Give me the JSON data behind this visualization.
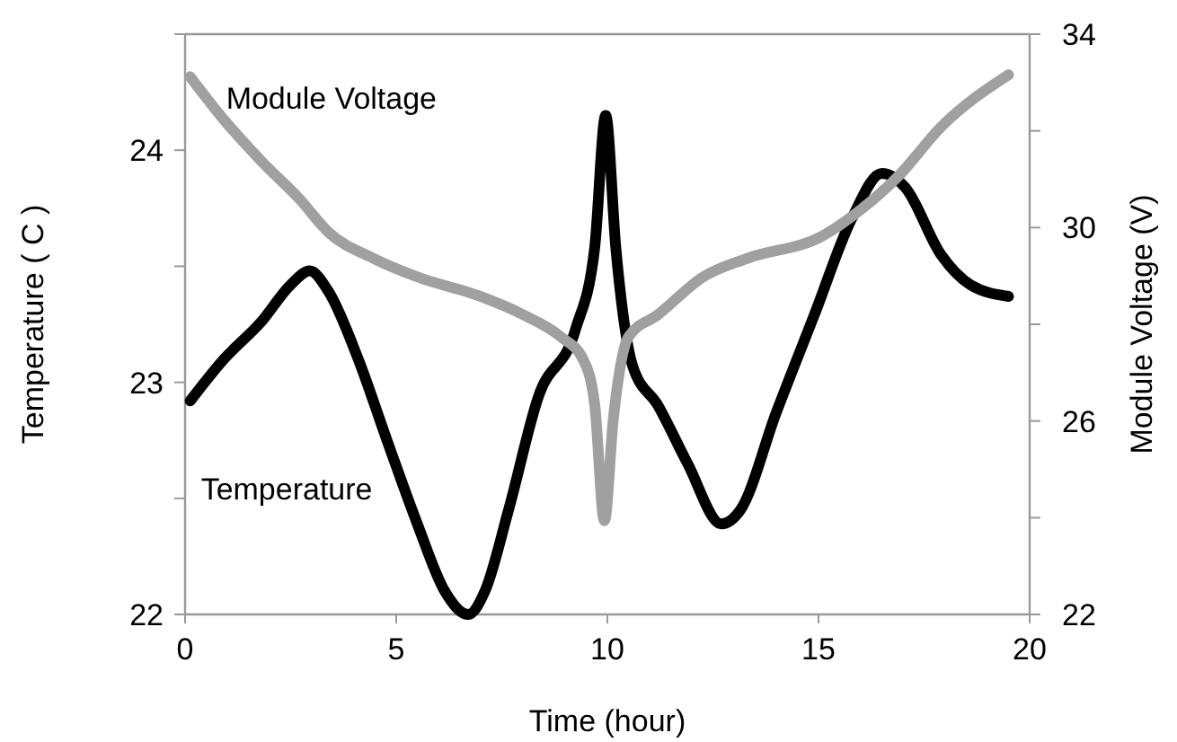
{
  "chart_data": {
    "type": "line",
    "xlabel": "Time (hour)",
    "ylabel": "Temperature ( C )",
    "y2label": "Module Voltage (V)",
    "xlim": [
      0,
      20
    ],
    "xticks": [
      0,
      5,
      10,
      15,
      20
    ],
    "ylim": [
      22,
      24.5
    ],
    "yticks": [
      22,
      {
        "value": 22.5,
        "label": null
      },
      23,
      {
        "value": 23.5,
        "label": null
      },
      24,
      {
        "value": 24.5,
        "label": null
      }
    ],
    "y2lim": [
      22,
      34
    ],
    "y2ticks": [
      22,
      {
        "value": 24,
        "label": null
      },
      26,
      {
        "value": 28,
        "label": null
      },
      30,
      {
        "value": 32,
        "label": null
      },
      34
    ],
    "grid": false,
    "legend": false,
    "marker": "none",
    "line_style": "solid",
    "series": [
      {
        "name": "Temperature",
        "color": "#000000",
        "x": [
          0.12,
          0.92,
          1.8,
          2.5,
          2.95,
          3.4,
          4.1,
          4.8,
          5.5,
          6.15,
          6.7,
          7.1,
          7.66,
          8.37,
          9.25,
          9.7,
          9.96,
          10.2,
          10.6,
          11.2,
          11.9,
          12.7,
          13.15,
          14.0,
          14.9,
          15.8,
          16.5,
          17.05,
          17.9,
          18.6,
          19.5
        ],
        "values": [
          22.92,
          23.1,
          23.26,
          23.42,
          23.48,
          23.39,
          23.1,
          22.74,
          22.39,
          22.1,
          22.0,
          22.1,
          22.45,
          22.94,
          23.23,
          23.58,
          24.15,
          23.58,
          23.07,
          22.9,
          22.65,
          22.39,
          22.45,
          22.87,
          23.29,
          23.71,
          23.9,
          23.84,
          23.55,
          23.42,
          23.37
        ]
      },
      {
        "name": "Module Voltage",
        "color": "#a0a0a0",
        "axis": "y2",
        "x": [
          0.12,
          0.92,
          1.8,
          2.7,
          3.4,
          4.47,
          5.5,
          6.95,
          8.0,
          8.9,
          9.43,
          9.7,
          9.93,
          10.14,
          10.5,
          11.2,
          12.27,
          13.3,
          15.1,
          16.0,
          16.9,
          17.9,
          19.5
        ],
        "values": [
          33.12,
          32.23,
          31.38,
          30.6,
          29.9,
          29.36,
          28.98,
          28.59,
          28.2,
          27.74,
          27.27,
          26.34,
          23.94,
          26.03,
          27.74,
          28.2,
          28.98,
          29.36,
          29.83,
          30.37,
          31.07,
          32.08,
          33.16
        ]
      }
    ]
  }
}
